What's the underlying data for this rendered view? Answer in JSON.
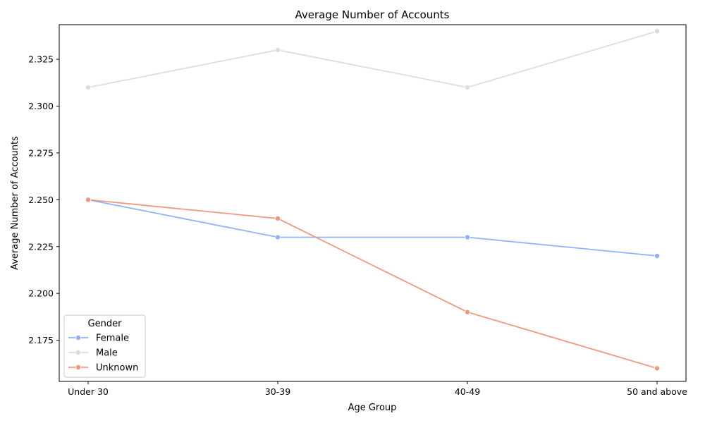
{
  "chart_data": {
    "type": "line",
    "title": "Average Number of Accounts",
    "xlabel": "Age Group",
    "ylabel": "Average Number of Accounts",
    "categories": [
      "Under 30",
      "30-39",
      "40-49",
      "50 and above"
    ],
    "ylim": [
      2.153,
      2.3435
    ],
    "yticks": [
      2.175,
      2.2,
      2.225,
      2.25,
      2.275,
      2.3,
      2.325
    ],
    "ytick_labels": [
      "2.175",
      "2.200",
      "2.225",
      "2.250",
      "2.275",
      "2.300",
      "2.325"
    ],
    "grid": false,
    "legend": {
      "title": "Gender",
      "position": "lower-left"
    },
    "series": [
      {
        "name": "Female",
        "color": "#8fb1f7",
        "values": [
          2.25,
          2.23,
          2.23,
          2.22
        ]
      },
      {
        "name": "Male",
        "color": "#dcdcdc",
        "values": [
          2.31,
          2.33,
          2.31,
          2.34
        ]
      },
      {
        "name": "Unknown",
        "color": "#f1977b",
        "values": [
          2.25,
          2.24,
          2.19,
          2.16
        ]
      }
    ]
  }
}
